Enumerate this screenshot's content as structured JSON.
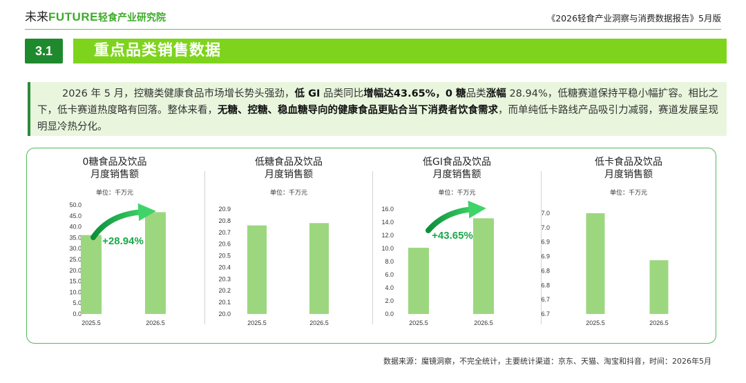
{
  "header": {
    "brand_prefix": "未来",
    "brand_future": "FUTURE",
    "brand_suffix": "轻食产业研究院",
    "report_title": "《2026轻食产业洞察与消费数据报告》5月版"
  },
  "section": {
    "number": "3.1",
    "title": "重点品类销售数据"
  },
  "summary": {
    "s1": "2026 年 5 月，控糖类健康食品市场增长势头强劲，",
    "b1": "低 GI",
    "s2": " 品类同比",
    "b2": "增幅达43.65%，0 糖",
    "s3": "品类",
    "b3": "涨幅",
    "s4": " 28.94%，低糖赛道保持平稳小幅扩容。相比之下，低卡赛道热度略有回落。整体来看，",
    "b4": "无糖、控糖、稳血糖导向的健康食品更贴合当下消费者饮食需求",
    "s5": "，而单纯低卡路线产品吸引力减弱，赛道发展呈现明显冷热分化。"
  },
  "colors": {
    "bar": "#9cd77f",
    "arrow": "#1aa84a",
    "accent": "#7ed41d",
    "section_dark": "#1f8a2d"
  },
  "chart_data": [
    {
      "type": "bar",
      "title_line1": "0糖食品及饮品",
      "title_line2": "月度销售额",
      "unit": "单位：千万元",
      "categories": [
        "2025.5",
        "2026.5"
      ],
      "values": [
        36.2,
        46.7
      ],
      "ylim": [
        0,
        50
      ],
      "ystep": 5,
      "ydecimals": 1,
      "growth_label": "+28.94%"
    },
    {
      "type": "bar",
      "title_line1": "低糖食品及饮品",
      "title_line2": "月度销售额",
      "unit": "单位：千万元",
      "categories": [
        "2025.5",
        "2026.5"
      ],
      "values": [
        20.76,
        20.78
      ],
      "ylim": [
        20.0,
        20.9
      ],
      "ystep": 0.1,
      "ydecimals": 1
    },
    {
      "type": "bar",
      "title_line1": "低GI食品及饮品",
      "title_line2": "月度销售额",
      "unit": "单位：千万元",
      "categories": [
        "2025.5",
        "2026.5"
      ],
      "values": [
        10.1,
        14.6
      ],
      "ylim": [
        0,
        16
      ],
      "ystep": 2,
      "ydecimals": 1,
      "growth_label": "+43.65%"
    },
    {
      "type": "bar",
      "title_line1": "低卡食品及饮品",
      "title_line2": "月度销售额",
      "unit": "单位：千万元",
      "categories": [
        "2025.5",
        "2026.5"
      ],
      "values": [
        7.0,
        6.86
      ],
      "ylim": [
        6.7,
        7.0
      ],
      "ytick_labels": [
        "6.7",
        "6.7",
        "6.8",
        "6.8",
        "6.9",
        "6.9",
        "7.0",
        "7.0"
      ],
      "ydecimals": 1
    }
  ],
  "footer": {
    "source": "数据来源：魔镜洞察，不完全统计，主要统计渠道：京东、天猫、淘宝和抖音，时间：2026年5月"
  }
}
